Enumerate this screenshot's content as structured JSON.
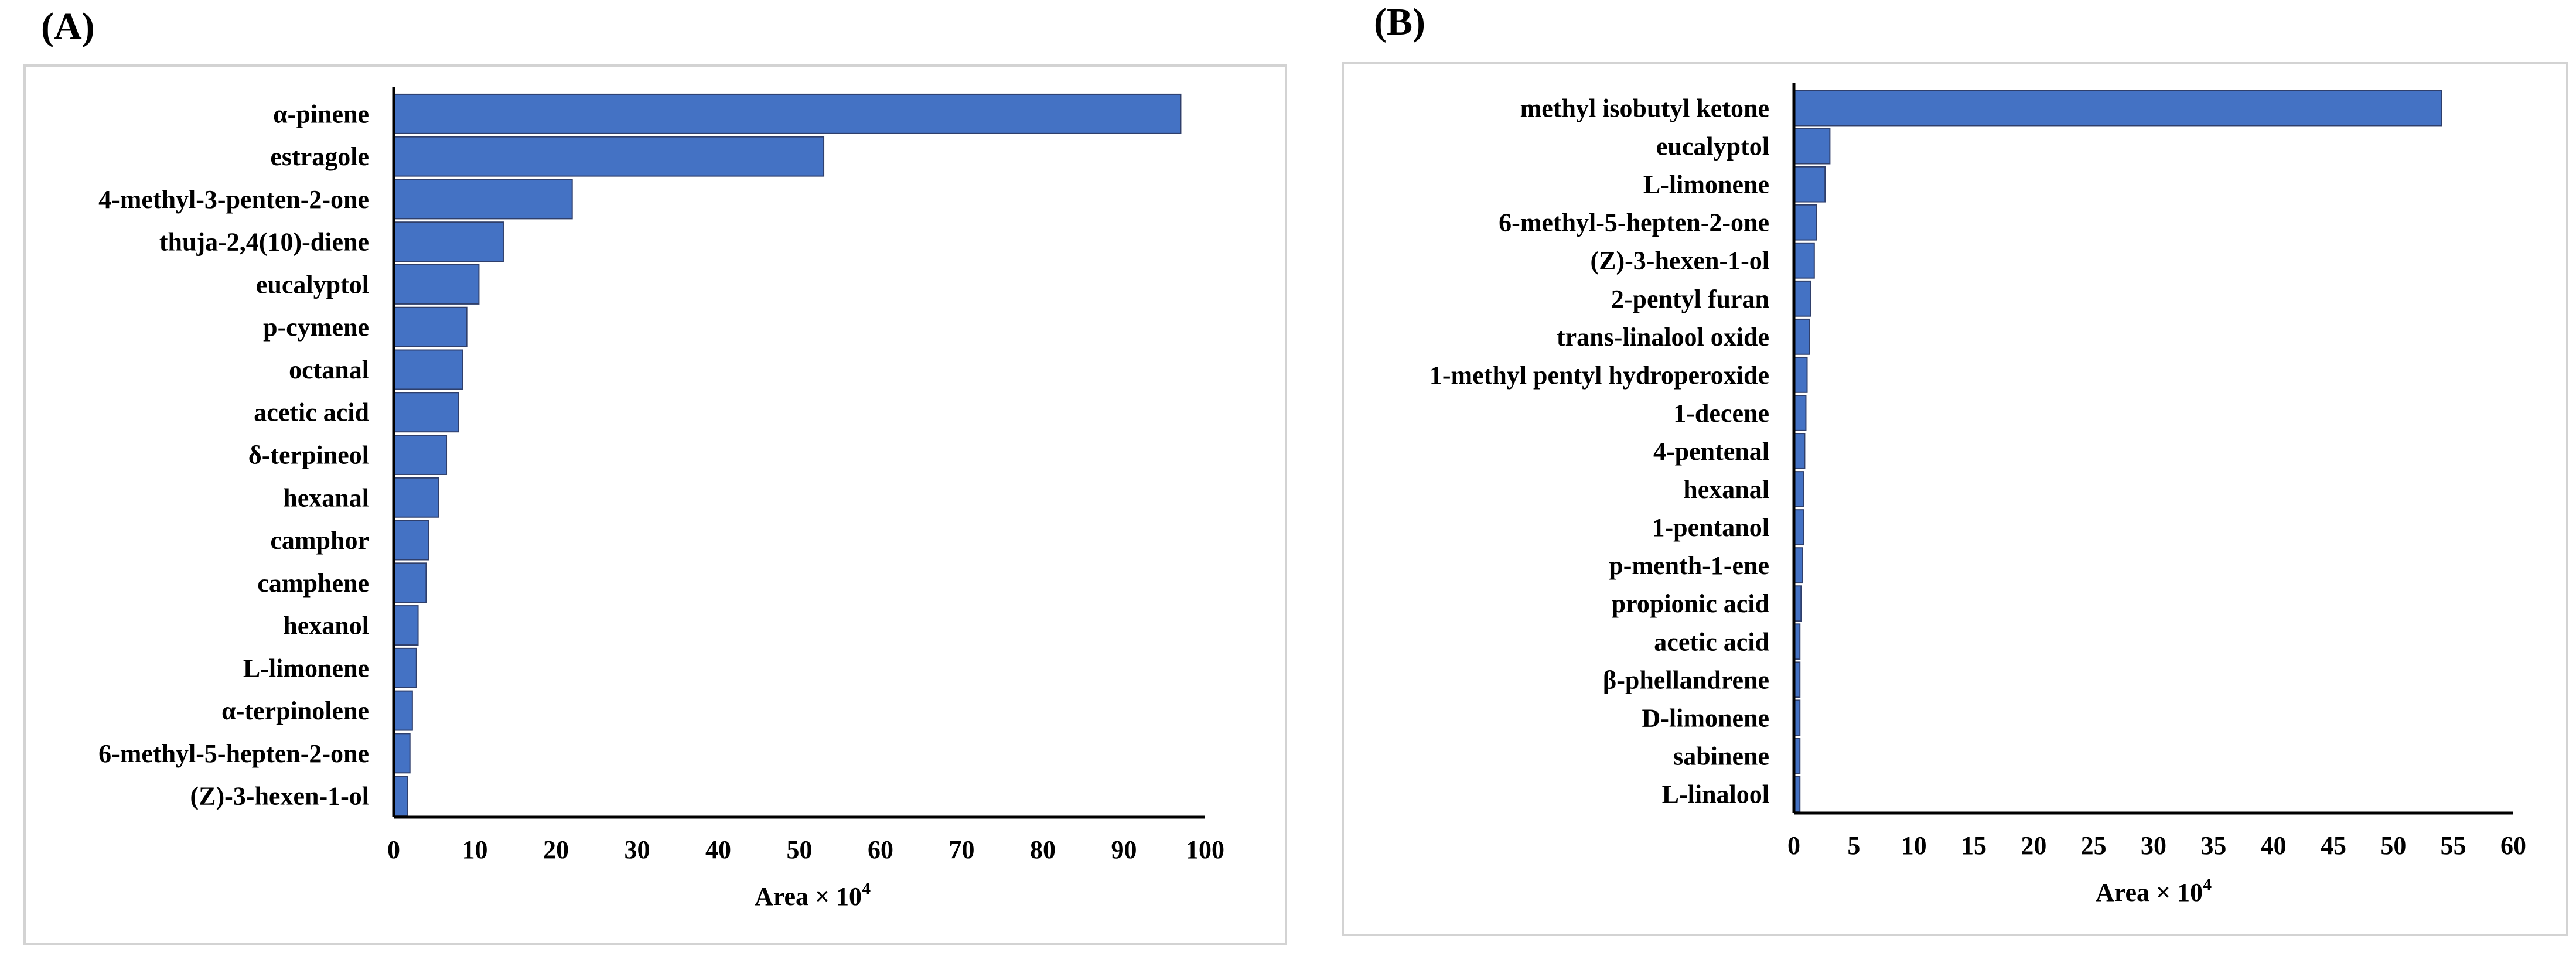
{
  "panels": [
    {
      "label": "(A)",
      "chart_data": {
        "type": "bar",
        "orientation": "horizontal",
        "xlabel": "Area × 10",
        "xlabel_sup": "4",
        "xlim": [
          0,
          100
        ],
        "ticks": [
          0,
          10,
          20,
          30,
          40,
          50,
          60,
          70,
          80,
          90,
          100
        ],
        "grid": false,
        "categories": [
          "α-pinene",
          "estragole",
          "4-methyl-3-penten-2-one",
          "thuja-2,4(10)-diene",
          "eucalyptol",
          "p-cymene",
          "octanal",
          "acetic acid",
          "δ-terpineol",
          "hexanal",
          "camphor",
          "camphene",
          "hexanol",
          "L-limonene",
          "α-terpinolene",
          "6-methyl-5-hepten-2-one",
          "(Z)-3-hexen-1-ol"
        ],
        "values": [
          97,
          53,
          22,
          13.5,
          10.5,
          9,
          8.5,
          8,
          6.5,
          5.5,
          4.3,
          4,
          3,
          2.8,
          2.3,
          2,
          1.7
        ],
        "bar_color": "#4472c4"
      }
    },
    {
      "label": "(B)",
      "chart_data": {
        "type": "bar",
        "orientation": "horizontal",
        "xlabel": "Area × 10",
        "xlabel_sup": "4",
        "xlim": [
          0,
          60
        ],
        "ticks": [
          0,
          5,
          10,
          15,
          20,
          25,
          30,
          35,
          40,
          45,
          50,
          55,
          60
        ],
        "grid": false,
        "categories": [
          "methyl isobutyl ketone",
          "eucalyptol",
          "L-limonene",
          "6-methyl-5-hepten-2-one",
          "(Z)-3-hexen-1-ol",
          "2-pentyl furan",
          "trans-linalool oxide",
          "1-methyl pentyl hydroperoxide",
          "1-decene",
          "4-pentenal",
          "hexanal",
          "1-pentanol",
          "p-menth-1-ene",
          "propionic acid",
          "acetic acid",
          "β-phellandrene",
          "D-limonene",
          "sabinene",
          "L-linalool"
        ],
        "values": [
          54,
          3,
          2.6,
          1.9,
          1.7,
          1.4,
          1.3,
          1.1,
          1.0,
          0.9,
          0.8,
          0.8,
          0.7,
          0.6,
          0.5,
          0.5,
          0.5,
          0.5,
          0.5
        ],
        "bar_color": "#4472c4"
      }
    }
  ]
}
